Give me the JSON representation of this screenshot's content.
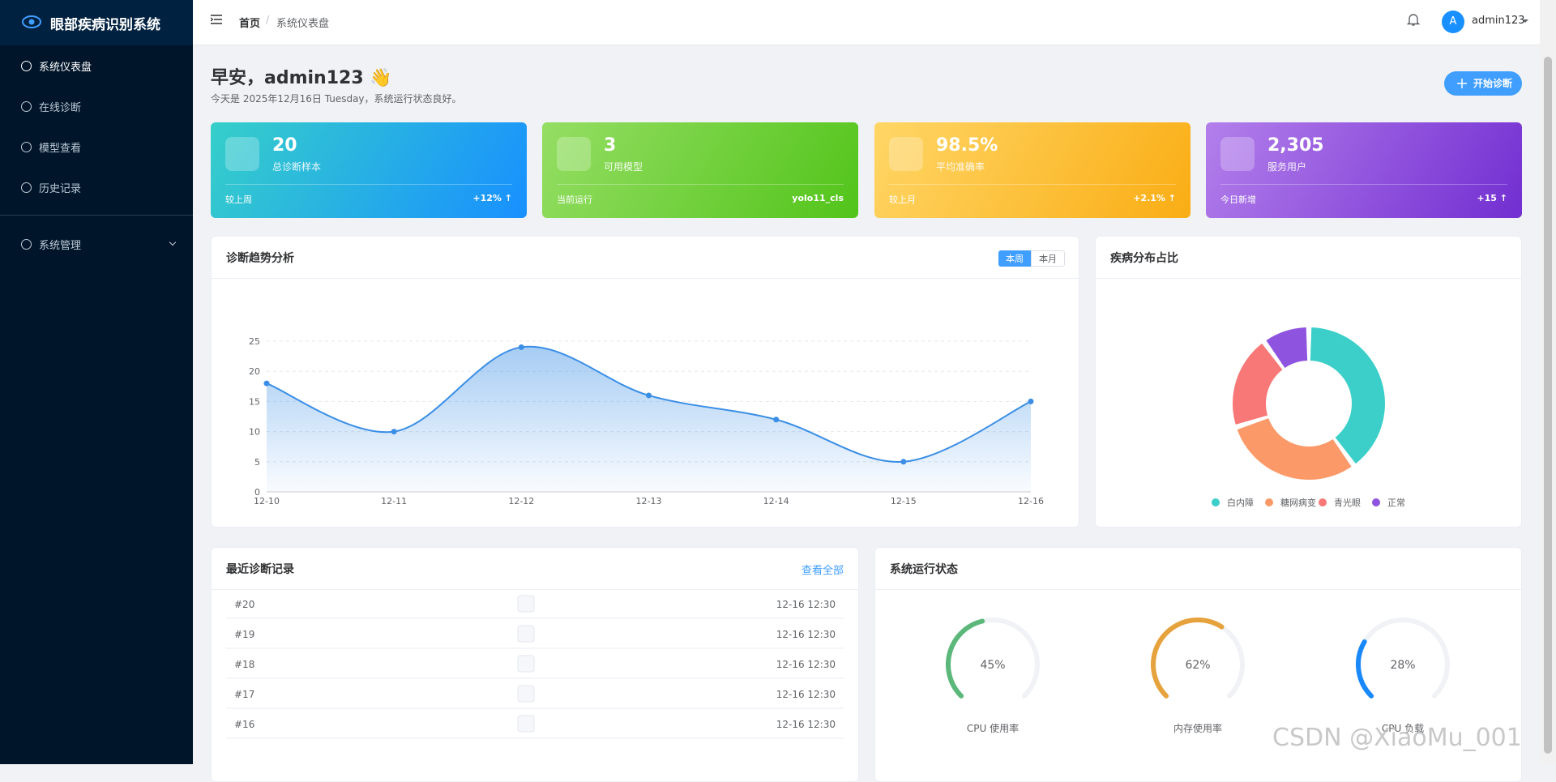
{
  "sidebar": {
    "logo": "眼部疾病识别系统",
    "menu": [
      "系统仪表盘",
      "在线诊断",
      "模型查看",
      "历史记录"
    ],
    "admin_menu": "系统管理"
  },
  "header": {
    "breadcrumb": [
      "首页",
      "系统仪表盘"
    ],
    "user": "admin123",
    "avatar": "A"
  },
  "greeting": {
    "title": "早安，admin123 👋",
    "subtitle": "今天是 2025年12月16日 Tuesday，系统运行状态良好。",
    "button": "开始诊断"
  },
  "stats": [
    {
      "value": "20",
      "label": "总诊断样本",
      "footer_label": "较上周",
      "footer_value": "+12% ↑"
    },
    {
      "value": "3",
      "label": "可用模型",
      "footer_label": "当前运行",
      "footer_value": "yolo11_cls"
    },
    {
      "value": "98.5%",
      "label": "平均准确率",
      "footer_label": "较上月",
      "footer_value": "+2.1% ↑"
    },
    {
      "value": "2,305",
      "label": "服务用户",
      "footer_label": "今日新增",
      "footer_value": "+15 ↑"
    }
  ],
  "chart_data": [
    {
      "type": "line",
      "title": "诊断趋势分析",
      "tabs": [
        "本周",
        "本月"
      ],
      "categories": [
        "12-10",
        "12-11",
        "12-12",
        "12-13",
        "12-14",
        "12-15",
        "12-16"
      ],
      "values": [
        18,
        10,
        24,
        16,
        12,
        5,
        15
      ],
      "color": "#3a8ee6",
      "ylim": [
        0,
        25
      ],
      "yticks": [
        0,
        5,
        10,
        15,
        20,
        25
      ],
      "grid": true
    },
    {
      "type": "pie",
      "title": "疾病分布占比",
      "categories": [
        "白内障",
        "糖网病变",
        "青光眼",
        "正常"
      ],
      "values": [
        40,
        30,
        20,
        10
      ],
      "colors": [
        "#3ccfc9",
        "#fb9a68",
        "#f87878",
        "#8e54e0"
      ]
    }
  ],
  "records": {
    "title": "最近诊断记录",
    "link": "查看全部",
    "rows": [
      [
        "#20",
        "12-16 12:30"
      ],
      [
        "#19",
        "12-16 12:30"
      ],
      [
        "#18",
        "12-16 12:30"
      ],
      [
        "#17",
        "12-16 12:30"
      ],
      [
        "#16",
        "12-16 12:30"
      ]
    ]
  },
  "system_status": {
    "title": "系统运行状态",
    "gauges": [
      {
        "name": "CPU 使用率",
        "value": 45,
        "value_label": "45%",
        "color": "#5cb87a"
      },
      {
        "name": "内存使用率",
        "value": 62,
        "value_label": "62%",
        "color": "#e6a23c"
      },
      {
        "name": "CPU 负载",
        "value": 28,
        "value_label": "28%",
        "color": "#1989fa"
      }
    ]
  },
  "watermark": "CSDN @XiaoMu_001"
}
